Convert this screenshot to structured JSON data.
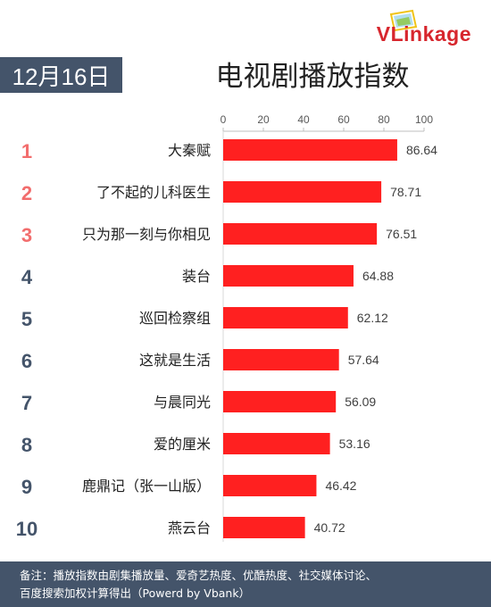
{
  "brand": {
    "logo_text": "VLinkage",
    "accent": "#d7262d"
  },
  "header": {
    "date": "12月16日",
    "title": "电视剧播放指数"
  },
  "footer": {
    "line1": "备注：播放指数由剧集播放量、爱奇艺热度、优酷热度、社交媒体讨论、",
    "line2": "百度搜索加权计算得出（Powerd by Vbank）"
  },
  "chart_data": {
    "type": "bar",
    "orientation": "horizontal",
    "title": "电视剧播放指数",
    "categories": [
      "大秦赋",
      "了不起的儿科医生",
      "只为那一刻与你相见",
      "装台",
      "巡回检察组",
      "这就是生活",
      "与晨同光",
      "爱的厘米",
      "鹿鼎记（张一山版）",
      "燕云台"
    ],
    "ranks": [
      "1",
      "2",
      "3",
      "4",
      "5",
      "6",
      "7",
      "8",
      "9",
      "10"
    ],
    "values": [
      86.64,
      78.71,
      76.51,
      64.88,
      62.12,
      57.64,
      56.09,
      53.16,
      46.42,
      40.72
    ],
    "xlim": [
      0,
      100
    ],
    "xticks": [
      0,
      20,
      40,
      60,
      80,
      100
    ],
    "xtick_labels": [
      "0",
      "20",
      "40",
      "60",
      "80",
      "100"
    ],
    "axis_position": "top",
    "grid": false,
    "bar_color": "#ff2020",
    "rank_colors": {
      "top3": "#f26d6d",
      "rest": "#44546a"
    }
  }
}
